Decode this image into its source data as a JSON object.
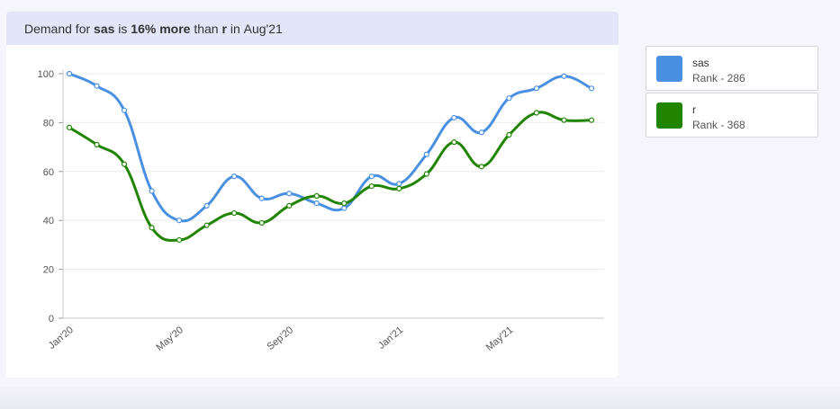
{
  "header": {
    "prefix": "Demand for ",
    "skill_a": "sas",
    "mid1": " is ",
    "diff": "16% more",
    "mid2": " than ",
    "skill_b": "r",
    "mid3": " in ",
    "month": "Aug'21"
  },
  "legend": [
    {
      "name": "sas",
      "rank": "Rank - 286",
      "color": "#4a90e2"
    },
    {
      "name": "r",
      "rank": "Rank - 368",
      "color": "#218502"
    }
  ],
  "chart_data": {
    "type": "line",
    "x": [
      "Jan'20",
      "Feb'20",
      "Mar'20",
      "Apr'20",
      "May'20",
      "Jun'20",
      "Jul'20",
      "Aug'20",
      "Sep'20",
      "Oct'20",
      "Nov'20",
      "Dec'20",
      "Jan'21",
      "Feb'21",
      "Mar'21",
      "Apr'21",
      "May'21",
      "Jun'21",
      "Jul'21",
      "Aug'21"
    ],
    "x_tick_labels": [
      "Jan'20",
      "May'20",
      "Sep'20",
      "Jan'21",
      "May'21"
    ],
    "y_ticks": [
      0,
      20,
      40,
      60,
      80,
      100
    ],
    "ylim": [
      0,
      100
    ],
    "grid": true,
    "series": [
      {
        "name": "sas",
        "color": "#4a90e2",
        "values": [
          100,
          95,
          85,
          52,
          40,
          46,
          58,
          49,
          51,
          47,
          45,
          58,
          55,
          67,
          82,
          76,
          90,
          94,
          99,
          94
        ]
      },
      {
        "name": "r",
        "color": "#218502",
        "values": [
          78,
          71,
          63,
          37,
          32,
          38,
          43,
          39,
          46,
          50,
          47,
          54,
          53,
          59,
          72,
          62,
          75,
          84,
          81,
          81
        ]
      }
    ]
  }
}
